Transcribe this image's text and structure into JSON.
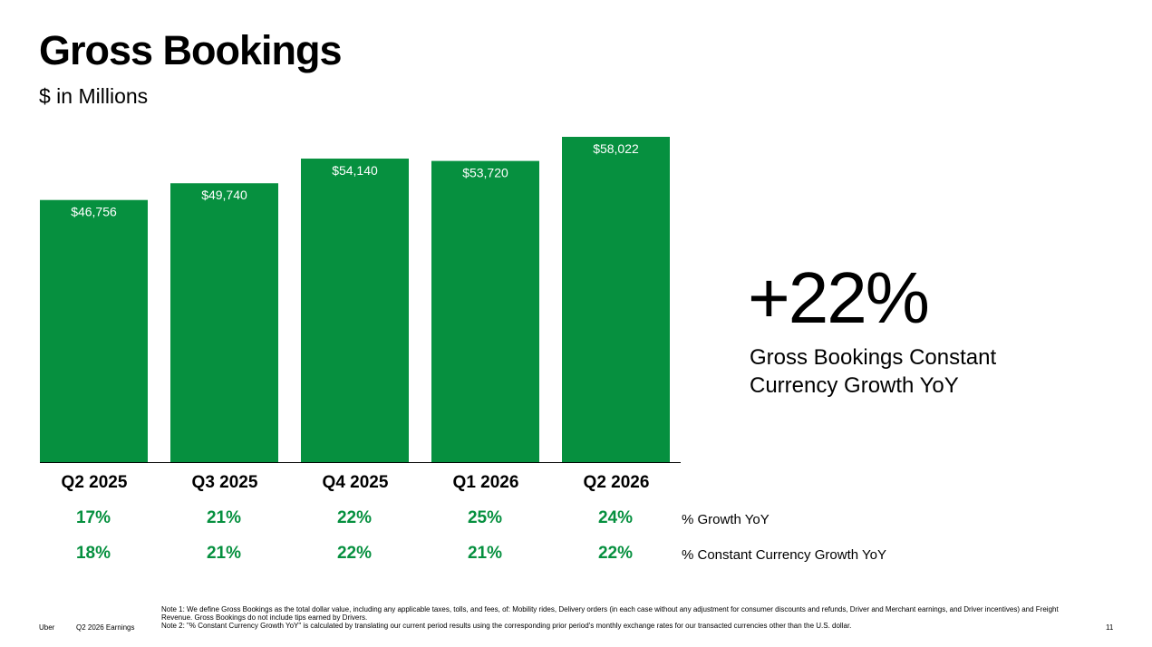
{
  "title": "Gross Bookings",
  "subtitle": "$ in Millions",
  "chart_data": {
    "type": "bar",
    "categories": [
      "Q2 2025",
      "Q3 2025",
      "Q4 2025",
      "Q1 2026",
      "Q2 2026"
    ],
    "values": [
      46756,
      49740,
      54140,
      53720,
      58022
    ],
    "data_labels": [
      "$46,756",
      "$49,740",
      "$54,140",
      "$53,720",
      "$58,022"
    ],
    "bar_color": "#06903f",
    "ylim": [
      0,
      58022
    ],
    "grid": false,
    "rows": [
      {
        "label": "% Growth YoY",
        "values": [
          "17%",
          "21%",
          "22%",
          "25%",
          "24%"
        ]
      },
      {
        "label": "% Constant Currency Growth YoY",
        "values": [
          "18%",
          "21%",
          "22%",
          "21%",
          "22%"
        ]
      }
    ]
  },
  "kpi": {
    "value": "+22%",
    "caption": "Gross Bookings Constant Currency Growth YoY"
  },
  "notes": {
    "note1": "Note 1: We define Gross Bookings as the total dollar value, including any applicable taxes, tolls, and fees, of: Mobility rides, Delivery orders (in each case without any adjustment for consumer discounts and refunds, Driver and Merchant earnings, and Driver incentives) and Freight Revenue. Gross Bookings do not include tips earned by Drivers.",
    "note2": "Note 2: \"% Constant Currency Growth YoY\" is calculated by translating our current period results using the corresponding prior period's monthly exchange rates for our transacted currencies other than the U.S. dollar."
  },
  "footer": {
    "brand": "Uber",
    "deck": "Q2 2026 Earnings",
    "page": "11"
  }
}
